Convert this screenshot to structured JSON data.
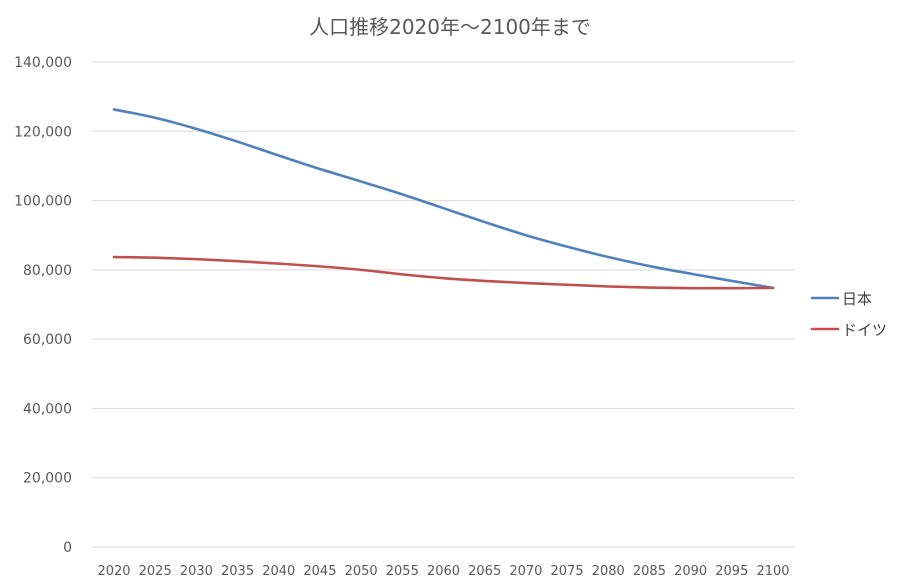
{
  "chart_data": {
    "type": "line",
    "title": "人口推移2020年〜2100年まで",
    "xlabel": "",
    "ylabel": "",
    "x": [
      "2020",
      "2025",
      "2030",
      "2035",
      "2040",
      "2045",
      "2050",
      "2055",
      "2060",
      "2065",
      "2070",
      "2075",
      "2080",
      "2085",
      "2090",
      "2095",
      "2100"
    ],
    "ylim": [
      0,
      140000
    ],
    "yticks": [
      0,
      20000,
      40000,
      60000,
      80000,
      100000,
      120000,
      140000
    ],
    "ytick_labels": [
      "0",
      "20,000",
      "40,000",
      "60,000",
      "80,000",
      "100,000",
      "120,000",
      "140,000"
    ],
    "grid": true,
    "legend_position": "right",
    "series": [
      {
        "name": "日本",
        "color": "#4f81bd",
        "values": [
          126300,
          123900,
          120700,
          117000,
          113000,
          109100,
          105500,
          101800,
          97800,
          93800,
          90000,
          86700,
          83700,
          81100,
          78900,
          76800,
          74800
        ]
      },
      {
        "name": "ドイツ",
        "color": "#c0504d",
        "values": [
          83700,
          83500,
          83100,
          82500,
          81800,
          81000,
          80000,
          78700,
          77600,
          76800,
          76200,
          75700,
          75200,
          74900,
          74700,
          74700,
          74800
        ]
      }
    ]
  }
}
